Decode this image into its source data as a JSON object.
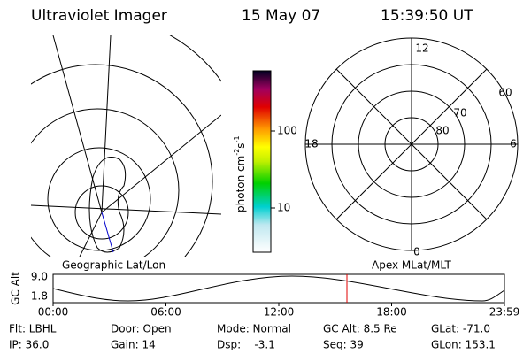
{
  "header": {
    "title": "Ultraviolet Imager",
    "date": "15 May 07",
    "time": "15:39:50 UT"
  },
  "colorbar": {
    "label": "photon cm",
    "exp1": "-2",
    "unit2": "s",
    "exp2": "-1",
    "ticks": [
      "100",
      "10"
    ]
  },
  "polar_plot": {
    "mlt_labels": [
      "12",
      "18",
      "6",
      "0"
    ],
    "mlat_labels": [
      "60",
      "70",
      "80"
    ]
  },
  "map_caption": "Geographic Lat/Lon",
  "polar_caption": "Apex MLat/MLT",
  "orbit": {
    "y_label": "GC Alt",
    "y_ticks": [
      "9.0",
      "1.8"
    ],
    "x_ticks": [
      "00:00",
      "06:00",
      "12:00",
      "18:00",
      "23:59"
    ]
  },
  "info": [
    [
      "Flt: LBHL",
      "Door: Open",
      "Mode: Normal",
      "GC Alt: 8.5 Re",
      "GLat: -71.0"
    ],
    [
      "IP: 36.0",
      "Gain: 14",
      "Dsp:    -3.1",
      "Seq: 39",
      "GLon: 153.1"
    ]
  ]
}
